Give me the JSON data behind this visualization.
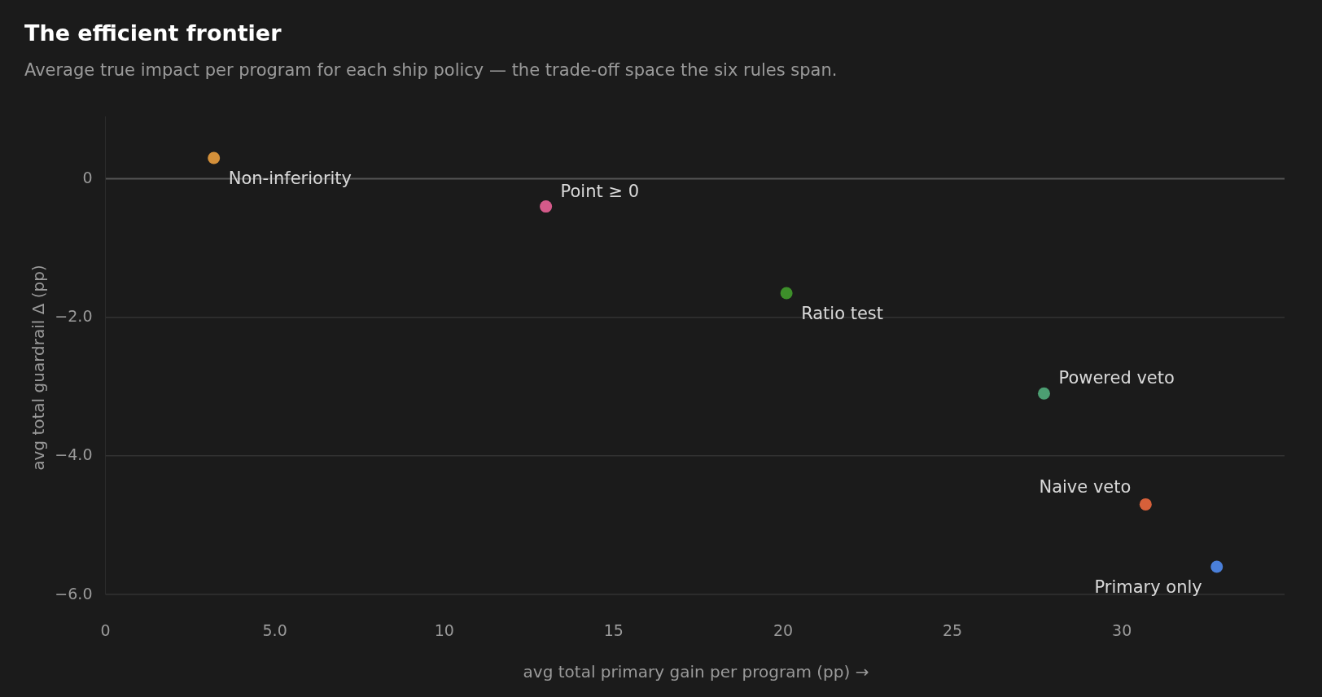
{
  "chart_data": {
    "type": "scatter",
    "title": "The efficient frontier",
    "subtitle": "Average true impact per program for each ship policy — the trade-off space the six rules span.",
    "xlabel": "avg total primary gain per program (pp) →",
    "ylabel": "avg total guardrail Δ (pp)",
    "series": [
      {
        "name": "Non-inferiority",
        "color": "#d4903a",
        "x": [
          3.2
        ],
        "values": [
          0.3
        ]
      },
      {
        "name": "Point ≥ 0",
        "color": "#d45a8a",
        "x": [
          13.0
        ],
        "values": [
          -0.4
        ]
      },
      {
        "name": "Ratio test",
        "color": "#3d8f2a",
        "x": [
          20.1
        ],
        "values": [
          -1.65
        ]
      },
      {
        "name": "Powered veto",
        "color": "#4c9e72",
        "x": [
          27.7
        ],
        "values": [
          -3.1
        ]
      },
      {
        "name": "Naive veto",
        "color": "#d6603a",
        "x": [
          30.7
        ],
        "values": [
          -4.7
        ]
      },
      {
        "name": "Primary only",
        "color": "#4a7fd9",
        "x": [
          32.8
        ],
        "values": [
          -5.6
        ]
      }
    ],
    "xlim": [
      0,
      34.8
    ],
    "ylim": [
      -6,
      0.9
    ],
    "xticks": [
      0,
      {
        "value": 5,
        "label": "5.0"
      },
      10,
      15,
      20,
      25,
      30
    ],
    "yticks": [
      0,
      {
        "value": -2,
        "label": "−2.0"
      },
      {
        "value": -4,
        "label": "−4.0"
      },
      {
        "value": -6,
        "label": "−6.0"
      }
    ],
    "grid": "y",
    "marker": "circle"
  }
}
